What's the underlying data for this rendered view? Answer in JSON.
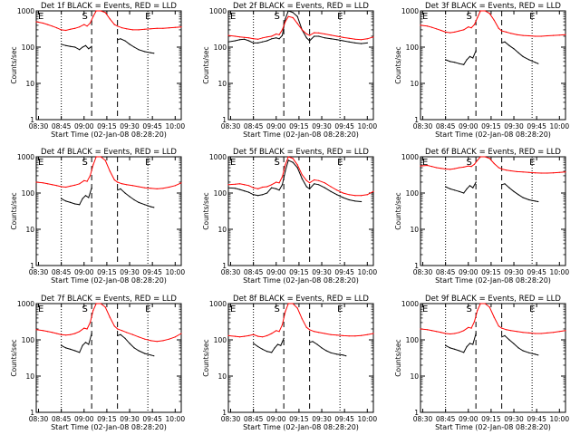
{
  "chart_data": {
    "type": "line",
    "panel_titles": [
      "Det 1f BLACK = Events, RED = LLD",
      "Det 2f BLACK = Events, RED = LLD",
      "Det 3f BLACK = Events, RED = LLD",
      "Det 4f BLACK = Events, RED = LLD",
      "Det 5f BLACK = Events, RED = LLD",
      "Det 6f BLACK = Events, RED = LLD",
      "Det 7f BLACK = Events, RED = LLD",
      "Det 8f BLACK = Events, RED = LLD",
      "Det 9f BLACK = Events, RED = LLD"
    ],
    "xlabel": "Start Time (02-Jan-08 08:28:20)",
    "ylabel": "Counts/sec",
    "x_ticks": [
      "08:30",
      "08:45",
      "09:00",
      "09:15",
      "09:30",
      "09:45",
      "10:00"
    ],
    "x_range_minutes": [
      -1.5,
      94
    ],
    "y_scale": "log",
    "y_range": [
      1,
      1000
    ],
    "y_ticks": [
      "1",
      "10",
      "100",
      "1000"
    ],
    "markers": {
      "e_label": "E",
      "s_label": "S",
      "e_left_x": 15,
      "s_x": 31,
      "e_right_x": 72,
      "dashed_x": [
        35,
        52
      ],
      "dotted_x": [
        15,
        72
      ]
    },
    "colors": {
      "events": "#000000",
      "lld": "#ff0000"
    },
    "series": [
      {
        "name": "BLACK = Events",
        "panel": 1,
        "x": [
          15,
          18,
          21,
          24,
          27,
          29,
          31,
          33,
          35,
          52,
          54,
          57,
          60,
          63,
          66,
          70,
          74,
          76
        ],
        "values": [
          120,
          110,
          105,
          100,
          85,
          100,
          110,
          90,
          105,
          160,
          170,
          150,
          120,
          100,
          85,
          75,
          70,
          68
        ]
      },
      {
        "name": "RED = LLD",
        "panel": 1,
        "x": [
          -1.5,
          3,
          6,
          9,
          12,
          15,
          18,
          21,
          24,
          27,
          30,
          32,
          34,
          36,
          38,
          41,
          44,
          47,
          50,
          52,
          55,
          58,
          62,
          66,
          70,
          74,
          78,
          82,
          86,
          90,
          94
        ],
        "values": [
          500,
          460,
          420,
          380,
          340,
          300,
          290,
          310,
          330,
          360,
          420,
          380,
          460,
          700,
          1000,
          1000,
          900,
          600,
          420,
          380,
          340,
          320,
          300,
          300,
          310,
          320,
          330,
          330,
          340,
          350,
          360
        ]
      },
      {
        "name": "BLACK = Events",
        "panel": 2,
        "x": [
          -1.5,
          3,
          6,
          9,
          12,
          15,
          18,
          21,
          24,
          27,
          30,
          32,
          34,
          36,
          38,
          41,
          44,
          47,
          50,
          52,
          55,
          58,
          62,
          66,
          70,
          74,
          78,
          82,
          86,
          90
        ],
        "values": [
          140,
          150,
          160,
          165,
          150,
          130,
          130,
          140,
          150,
          170,
          180,
          170,
          210,
          600,
          1000,
          900,
          700,
          300,
          180,
          150,
          200,
          200,
          180,
          170,
          160,
          150,
          140,
          130,
          125,
          130
        ]
      },
      {
        "name": "RED = LLD",
        "panel": 2,
        "x": [
          -1.5,
          3,
          6,
          9,
          12,
          15,
          18,
          21,
          24,
          27,
          30,
          32,
          34,
          36,
          38,
          41,
          44,
          47,
          50,
          52,
          55,
          58,
          62,
          66,
          70,
          74,
          78,
          82,
          86,
          90,
          94
        ],
        "values": [
          210,
          200,
          190,
          185,
          180,
          170,
          165,
          180,
          190,
          200,
          230,
          220,
          300,
          500,
          700,
          650,
          450,
          300,
          230,
          210,
          250,
          245,
          230,
          215,
          200,
          185,
          175,
          165,
          160,
          170,
          190
        ]
      },
      {
        "name": "BLACK = Events",
        "panel": 3,
        "x": [
          15,
          18,
          21,
          24,
          27,
          29,
          31,
          33,
          35,
          52,
          54,
          57,
          60,
          63,
          66,
          70,
          74,
          76
        ],
        "values": [
          45,
          40,
          38,
          35,
          33,
          45,
          55,
          50,
          80,
          130,
          140,
          110,
          90,
          70,
          55,
          45,
          38,
          35
        ]
      },
      {
        "name": "RED = LLD",
        "panel": 3,
        "x": [
          -1.5,
          3,
          6,
          9,
          12,
          15,
          18,
          21,
          24,
          27,
          30,
          32,
          34,
          36,
          38,
          41,
          44,
          47,
          50,
          52,
          55,
          58,
          62,
          66,
          70,
          74,
          78,
          82,
          86,
          90,
          94
        ],
        "values": [
          400,
          380,
          350,
          320,
          290,
          260,
          250,
          260,
          280,
          300,
          360,
          340,
          420,
          650,
          1000,
          1000,
          850,
          550,
          330,
          280,
          260,
          240,
          220,
          210,
          205,
          200,
          200,
          205,
          210,
          215,
          220
        ]
      },
      {
        "name": "BLACK = Events",
        "panel": 4,
        "x": [
          15,
          18,
          21,
          24,
          27,
          29,
          31,
          33,
          35,
          52,
          54,
          57,
          60,
          63,
          66,
          70,
          74,
          76
        ],
        "values": [
          70,
          60,
          55,
          50,
          48,
          70,
          85,
          75,
          140,
          120,
          130,
          100,
          80,
          65,
          55,
          48,
          42,
          40
        ]
      },
      {
        "name": "RED = LLD",
        "panel": 4,
        "x": [
          -1.5,
          3,
          6,
          9,
          12,
          15,
          18,
          21,
          24,
          27,
          30,
          32,
          34,
          36,
          38,
          41,
          44,
          47,
          50,
          52,
          55,
          58,
          62,
          66,
          70,
          74,
          78,
          82,
          86,
          90,
          94
        ],
        "values": [
          200,
          190,
          180,
          170,
          160,
          150,
          145,
          155,
          165,
          180,
          220,
          210,
          300,
          600,
          1000,
          1000,
          800,
          400,
          230,
          200,
          180,
          170,
          160,
          150,
          140,
          135,
          130,
          135,
          145,
          160,
          190
        ]
      },
      {
        "name": "BLACK = Events",
        "panel": 5,
        "x": [
          -1.5,
          3,
          6,
          9,
          12,
          15,
          18,
          21,
          24,
          27,
          30,
          32,
          34,
          36,
          38,
          41,
          44,
          47,
          50,
          52,
          55,
          58,
          62,
          66,
          70,
          74,
          78,
          82,
          86
        ],
        "values": [
          140,
          135,
          125,
          115,
          105,
          90,
          85,
          90,
          100,
          140,
          130,
          120,
          170,
          400,
          800,
          700,
          500,
          250,
          150,
          130,
          180,
          170,
          140,
          110,
          90,
          75,
          65,
          60,
          58
        ]
      },
      {
        "name": "RED = LLD",
        "panel": 5,
        "x": [
          -1.5,
          3,
          6,
          9,
          12,
          15,
          18,
          21,
          24,
          27,
          30,
          32,
          34,
          36,
          38,
          41,
          44,
          47,
          50,
          52,
          55,
          58,
          62,
          66,
          70,
          74,
          78,
          82,
          86,
          90,
          94
        ],
        "values": [
          170,
          175,
          180,
          170,
          160,
          140,
          130,
          145,
          150,
          170,
          200,
          190,
          280,
          600,
          1000,
          900,
          600,
          320,
          220,
          190,
          230,
          220,
          190,
          150,
          120,
          100,
          90,
          85,
          85,
          90,
          110
        ]
      },
      {
        "name": "BLACK = Events",
        "panel": 6,
        "x": [
          15,
          18,
          21,
          24,
          27,
          29,
          31,
          33,
          35,
          52,
          54,
          57,
          60,
          63,
          66,
          70,
          74,
          76
        ],
        "values": [
          150,
          130,
          120,
          110,
          100,
          130,
          160,
          140,
          200,
          170,
          180,
          140,
          110,
          90,
          75,
          65,
          60,
          58
        ]
      },
      {
        "name": "RED = LLD",
        "panel": 6,
        "x": [
          -1.5,
          3,
          6,
          9,
          12,
          15,
          18,
          21,
          24,
          27,
          30,
          32,
          34,
          36,
          38,
          41,
          44,
          47,
          50,
          52,
          55,
          58,
          62,
          66,
          70,
          74,
          78,
          82,
          86,
          90,
          94
        ],
        "values": [
          560,
          580,
          540,
          500,
          480,
          460,
          450,
          470,
          500,
          520,
          560,
          540,
          620,
          800,
          1000,
          1000,
          900,
          650,
          500,
          460,
          430,
          410,
          390,
          380,
          370,
          360,
          355,
          355,
          360,
          370,
          380
        ]
      },
      {
        "name": "BLACK = Events",
        "panel": 7,
        "x": [
          15,
          18,
          21,
          24,
          27,
          29,
          31,
          33,
          35,
          52,
          54,
          57,
          60,
          63,
          66,
          70,
          74,
          76
        ],
        "values": [
          70,
          60,
          55,
          50,
          45,
          70,
          85,
          75,
          150,
          130,
          140,
          110,
          80,
          60,
          50,
          42,
          38,
          36
        ]
      },
      {
        "name": "RED = LLD",
        "panel": 7,
        "x": [
          -1.5,
          3,
          6,
          9,
          12,
          15,
          18,
          21,
          24,
          27,
          30,
          32,
          34,
          36,
          38,
          41,
          44,
          47,
          50,
          52,
          55,
          58,
          62,
          66,
          70,
          74,
          78,
          82,
          86,
          90,
          94
        ],
        "values": [
          190,
          180,
          170,
          160,
          150,
          140,
          135,
          140,
          150,
          170,
          210,
          200,
          300,
          650,
          1000,
          1000,
          800,
          420,
          240,
          200,
          180,
          160,
          140,
          120,
          105,
          95,
          90,
          95,
          105,
          120,
          150
        ]
      },
      {
        "name": "BLACK = Events",
        "panel": 8,
        "x": [
          15,
          18,
          21,
          24,
          27,
          29,
          31,
          33,
          35,
          52,
          54,
          57,
          60,
          63,
          66,
          70,
          74,
          76
        ],
        "values": [
          80,
          65,
          55,
          48,
          45,
          60,
          75,
          70,
          110,
          85,
          90,
          75,
          60,
          50,
          44,
          40,
          38,
          36
        ]
      },
      {
        "name": "RED = LLD",
        "panel": 8,
        "x": [
          -1.5,
          3,
          6,
          9,
          12,
          15,
          18,
          21,
          24,
          27,
          30,
          32,
          34,
          36,
          38,
          41,
          44,
          47,
          50,
          52,
          55,
          58,
          62,
          66,
          70,
          74,
          78,
          82,
          86,
          90,
          94
        ],
        "values": [
          130,
          125,
          120,
          125,
          130,
          140,
          125,
          120,
          130,
          150,
          180,
          170,
          260,
          600,
          1000,
          1000,
          750,
          380,
          220,
          190,
          170,
          160,
          150,
          140,
          135,
          130,
          128,
          128,
          132,
          140,
          150
        ]
      },
      {
        "name": "BLACK = Events",
        "panel": 9,
        "x": [
          15,
          18,
          21,
          24,
          27,
          29,
          31,
          33,
          35,
          52,
          54,
          57,
          60,
          63,
          66,
          70,
          74,
          76
        ],
        "values": [
          70,
          60,
          55,
          50,
          45,
          65,
          80,
          75,
          150,
          120,
          130,
          100,
          78,
          60,
          50,
          44,
          40,
          38
        ]
      },
      {
        "name": "RED = LLD",
        "panel": 9,
        "x": [
          -1.5,
          3,
          6,
          9,
          12,
          15,
          18,
          21,
          24,
          27,
          30,
          32,
          34,
          36,
          38,
          41,
          44,
          47,
          50,
          52,
          55,
          58,
          62,
          66,
          70,
          74,
          78,
          82,
          86,
          90,
          94
        ],
        "values": [
          200,
          190,
          180,
          170,
          160,
          150,
          145,
          150,
          160,
          180,
          220,
          210,
          320,
          650,
          1000,
          1000,
          800,
          420,
          240,
          210,
          190,
          180,
          170,
          160,
          155,
          150,
          150,
          155,
          160,
          170,
          180
        ]
      }
    ]
  }
}
